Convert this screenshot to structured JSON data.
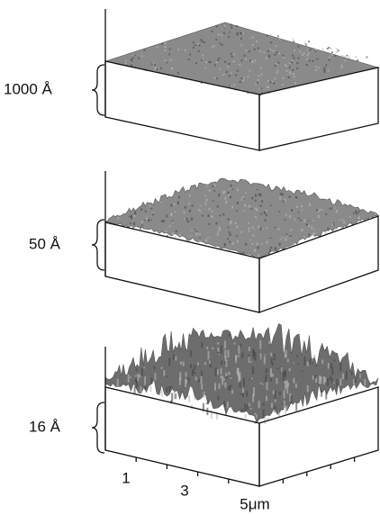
{
  "panels": [
    {
      "label": "1000 Å"
    },
    {
      "label": "50 Å"
    },
    {
      "label": "16 Å"
    }
  ],
  "axis_labels": [
    "1",
    "3",
    "5μm"
  ]
}
